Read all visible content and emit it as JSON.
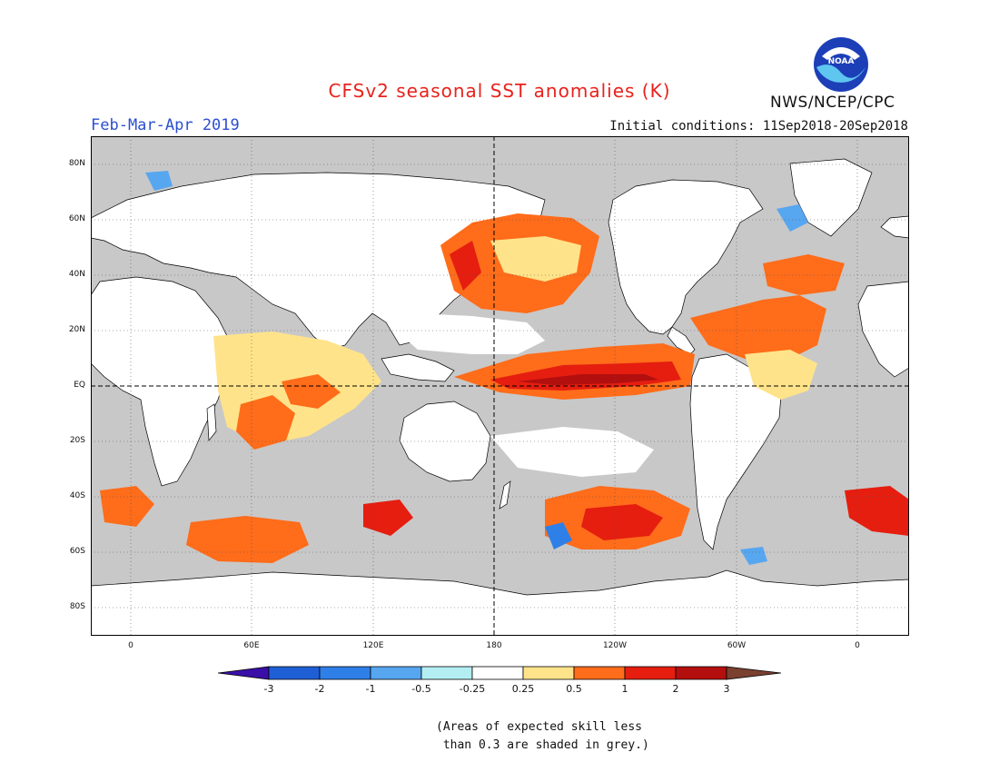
{
  "title": "CFSv2 seasonal SST anomalies (K)",
  "period": "Feb-Mar-Apr 2019",
  "initial_conditions": "Initial conditions: 11Sep2018-20Sep2018",
  "agency": "NWS/NCEP/CPC",
  "logo_text": "NOAA",
  "lat_labels": [
    "80N",
    "60N",
    "40N",
    "20N",
    "EQ",
    "20S",
    "40S",
    "60S",
    "80S"
  ],
  "lon_labels": [
    "0",
    "60E",
    "120E",
    "180",
    "120W",
    "60W",
    "0"
  ],
  "colorbar": {
    "labels": [
      "-3",
      "-2",
      "-1",
      "-0.5",
      "-0.25",
      "0.25",
      "0.5",
      "1",
      "2",
      "3"
    ],
    "colors": [
      "#3a0fa8",
      "#1f5fd6",
      "#2f7fe8",
      "#57a6f0",
      "#b3eef2",
      "#ffffff",
      "#ffe38a",
      "#ff6c1a",
      "#e51e10",
      "#b30f0f",
      "#7a4030"
    ]
  },
  "note_lines": [
    "(Areas of expected skill less",
    " than 0.3 are shaded in grey.)"
  ],
  "colors": {
    "land": "#ffffff",
    "no_skill": "#c8c8c8",
    "title": "#e8221c",
    "period": "#2a4fd0"
  }
}
